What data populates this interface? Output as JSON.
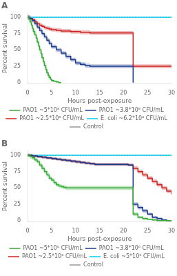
{
  "chart_data": [
    {
      "type": "step",
      "title": "A",
      "xlabel": "Hours post-exposure",
      "ylabel": "Percent survival",
      "xlim": [
        0,
        30
      ],
      "ylim": [
        -2,
        107
      ],
      "xticks": [
        0,
        5,
        10,
        15,
        20,
        25,
        30
      ],
      "yticks": [
        0,
        25,
        50,
        75,
        100
      ],
      "grid": false,
      "legend": "bottom",
      "series": [
        {
          "name": "PAO1 ~5*10⁸ CFU/mL",
          "color": "#33aa33",
          "line_style": "solid",
          "x": [
            0,
            0.3,
            0.5,
            0.8,
            1.0,
            1.2,
            1.5,
            1.8,
            2.0,
            2.3,
            2.5,
            2.8,
            3.0,
            3.3,
            3.5,
            3.8,
            4.0,
            4.3,
            4.5,
            4.8,
            5.0,
            5.5,
            6.0,
            6.5,
            7.0
          ],
          "values": [
            100,
            97,
            93,
            88,
            83,
            78,
            73,
            68,
            62,
            56,
            50,
            44,
            38,
            32,
            26,
            20,
            15,
            11,
            8,
            5,
            3,
            2,
            1,
            0,
            0
          ],
          "err": [
            4,
            4,
            4,
            4,
            4,
            4,
            4,
            4,
            4,
            4,
            4,
            4,
            4,
            4,
            4,
            4,
            4,
            3,
            3,
            2,
            2,
            1,
            1,
            0,
            0
          ]
        },
        {
          "name": "PAO1 ~3.8*10⁸ CFU/mL",
          "color": "#1a3a8a",
          "line_style": "solid",
          "x": [
            0,
            0.5,
            1,
            1.5,
            2,
            2.5,
            3,
            3.5,
            4,
            4.5,
            5,
            6,
            7,
            8,
            9,
            10,
            11,
            12,
            13,
            14,
            21,
            22
          ],
          "values": [
            100,
            98,
            95,
            90,
            85,
            80,
            75,
            70,
            65,
            60,
            55,
            50,
            45,
            40,
            35,
            30,
            28,
            26,
            25,
            25,
            25,
            0
          ],
          "err": [
            3,
            3,
            3,
            3,
            3,
            3,
            3,
            3,
            3,
            3,
            3,
            3,
            3,
            3,
            3,
            3,
            3,
            3,
            3,
            3,
            3,
            0
          ]
        },
        {
          "name": "PAO1 ~2.5*10⁸ CFU/mL",
          "color": "#cc2222",
          "line_style": "solid",
          "x": [
            0,
            0.5,
            1,
            1.5,
            2,
            2.5,
            3,
            3.5,
            4,
            4.5,
            5,
            6,
            7,
            8,
            9,
            10,
            11,
            12,
            13,
            14,
            21,
            22,
            30
          ],
          "values": [
            100,
            98,
            96,
            93,
            90,
            88,
            86,
            84,
            83,
            82,
            81,
            80,
            79,
            79,
            78,
            78,
            77,
            77,
            76,
            76,
            76,
            25,
            25
          ],
          "err": [
            3,
            3,
            3,
            3,
            3,
            3,
            3,
            3,
            3,
            3,
            3,
            3,
            3,
            3,
            3,
            3,
            3,
            3,
            3,
            3,
            3,
            3,
            3
          ]
        },
        {
          "name": "E. coli ~6.2*10⁴ CFU/mL",
          "color": "#00ccee",
          "line_style": "solid",
          "x": [
            0,
            30
          ],
          "values": [
            100,
            100
          ]
        },
        {
          "name": "Control",
          "color": "#999999",
          "line_style": "dotted",
          "x": [
            0,
            30
          ],
          "values": [
            100,
            100
          ]
        }
      ]
    },
    {
      "type": "step",
      "title": "B",
      "xlabel": "Hours post-exposure",
      "ylabel": "Percent survival",
      "xlim": [
        0,
        30
      ],
      "ylim": [
        -2,
        107
      ],
      "xticks": [
        0,
        5,
        10,
        15,
        20,
        25,
        30
      ],
      "yticks": [
        0,
        25,
        50,
        75,
        100
      ],
      "grid": false,
      "legend": "bottom",
      "series": [
        {
          "name": "PAO1 ~5*10⁶ CFU/mL",
          "color": "#33aa33",
          "line_style": "solid",
          "x": [
            0,
            0.5,
            1,
            1.5,
            2,
            2.5,
            3,
            3.5,
            4,
            4.5,
            5,
            5.5,
            6,
            6.5,
            7,
            7.5,
            8,
            9,
            10,
            11,
            12,
            13,
            21,
            22,
            23,
            24,
            25,
            26,
            27,
            28,
            29,
            30
          ],
          "values": [
            100,
            98,
            96,
            93,
            90,
            85,
            80,
            75,
            70,
            65,
            62,
            58,
            55,
            53,
            52,
            51,
            50,
            50,
            50,
            50,
            50,
            50,
            50,
            10,
            5,
            3,
            2,
            1,
            0,
            0,
            0,
            0
          ],
          "err": [
            3,
            3,
            3,
            3,
            3,
            3,
            3,
            3,
            3,
            3,
            3,
            3,
            3,
            3,
            3,
            3,
            3,
            3,
            3,
            3,
            3,
            3,
            3,
            3,
            2,
            2,
            1,
            1,
            0,
            0,
            0,
            0
          ]
        },
        {
          "name": "PAO1 ~3.8*10⁶ CFU/mL",
          "color": "#1a3a8a",
          "line_style": "solid",
          "x": [
            0,
            1,
            2,
            3,
            4,
            5,
            6,
            7,
            8,
            9,
            10,
            11,
            12,
            13,
            14,
            21,
            22,
            23,
            24,
            25,
            26,
            27,
            28,
            29,
            30
          ],
          "values": [
            100,
            99,
            98,
            97,
            96,
            95,
            94,
            93,
            92,
            91,
            90,
            89,
            88,
            87,
            86,
            85,
            25,
            20,
            15,
            10,
            5,
            3,
            1,
            0,
            0
          ],
          "err": [
            2,
            2,
            2,
            2,
            2,
            2,
            2,
            2,
            2,
            2,
            2,
            2,
            2,
            2,
            2,
            2,
            3,
            3,
            3,
            2,
            2,
            2,
            1,
            0,
            0
          ]
        },
        {
          "name": "PAO1 ~2.5*10⁶ CFU/mL",
          "color": "#cc2222",
          "line_style": "solid",
          "x": [
            0,
            1,
            2,
            3,
            4,
            5,
            6,
            7,
            8,
            9,
            10,
            11,
            12,
            13,
            14,
            21,
            22,
            23,
            24,
            25,
            26,
            27,
            28,
            29,
            30
          ],
          "values": [
            100,
            99,
            98,
            97,
            96,
            95,
            94,
            93,
            92,
            91,
            90,
            89,
            88,
            87,
            86,
            85,
            80,
            75,
            70,
            65,
            60,
            55,
            50,
            45,
            40
          ],
          "err": [
            2,
            2,
            2,
            2,
            2,
            2,
            2,
            2,
            2,
            2,
            2,
            2,
            2,
            2,
            2,
            2,
            3,
            3,
            3,
            3,
            3,
            3,
            3,
            3,
            3
          ]
        },
        {
          "name": "E. coli ~5*10⁶ CFU/mL",
          "color": "#00ccee",
          "line_style": "solid",
          "x": [
            0,
            30
          ],
          "values": [
            100,
            100
          ]
        },
        {
          "name": "Control",
          "color": "#999999",
          "line_style": "dotted",
          "x": [
            0,
            30
          ],
          "values": [
            100,
            100
          ]
        }
      ]
    }
  ]
}
